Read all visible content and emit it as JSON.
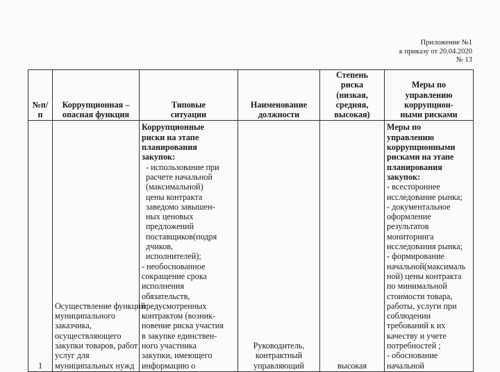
{
  "attachment": {
    "line1": "Приложение  №1",
    "line2": "к приказу от 20.04.2020",
    "line3": "№ 13"
  },
  "table": {
    "headers": [
      [
        "№п/",
        "п"
      ],
      [
        "Коррупционная –",
        "опасная  функция"
      ],
      [
        "Типовые",
        "ситуации"
      ],
      [
        "Наименование",
        "должности"
      ],
      [
        "Степень",
        "риска",
        "(низкая,",
        "средняя,",
        "высокая)"
      ],
      [
        "Меры по",
        "управлению",
        "коррупцион-",
        "ными рисками"
      ]
    ],
    "rows": [
      {
        "number": "1",
        "function_lines": [
          "Осуществление функций",
          "муниципального",
          "заказчика,",
          "осуществляющего",
          "закупки товаров, работ",
          "услуг для",
          "муниципальных нужд"
        ],
        "situations_heading": [
          "Коррупционные",
          "риски на этапе",
          "планирования",
          "закупок:"
        ],
        "situations_lines": [
          " - использование при",
          " расчете начальной",
          " (максимальной)",
          " цены контракта",
          " заведомо завышен-",
          " ных ценовых",
          " предложений",
          " поставщиков(подря",
          " дчиков,",
          " исполнителей);",
          "- необоснованное",
          "сокращение срока",
          "исполнения",
          "обязательств,",
          "предусмотренных",
          "контрактом (возник-",
          "новение риска участия",
          "в закупке единствен-",
          "ного участника",
          "закупки, имеющего",
          "информацию о"
        ],
        "position_lines": [
          "Руководитель,",
          "контрактный",
          "управляющий"
        ],
        "risk_level": "высокая",
        "measures_heading": [
          "Меры по",
          "управлению",
          "коррупционными",
          "рисками на этапе",
          "планирования",
          "закупок:"
        ],
        "measures_lines": [
          "- всестороннее",
          "исследование рынка;",
          "- документальное",
          "оформление",
          "результатов",
          "мониторинга",
          "исследования рынка;",
          "- формирование",
          "начальной(максималь",
          "ной) цены контракта",
          "по минимальной",
          "стоимости товара,",
          "работы, услуги при",
          "соблюдении",
          "требований к их",
          "качеству и учете",
          "потребностей ;",
          "- обоснование",
          "начальной"
        ]
      }
    ]
  }
}
